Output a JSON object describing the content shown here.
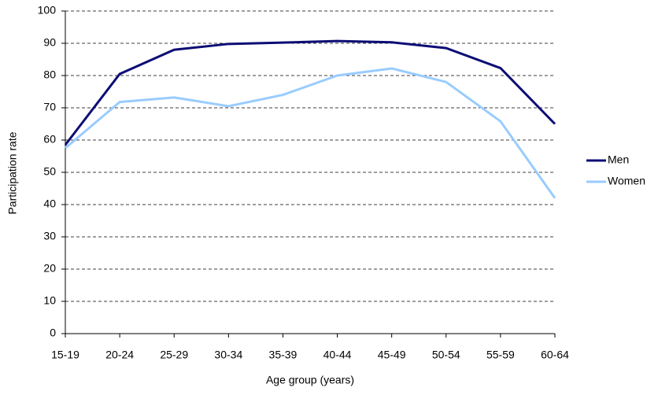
{
  "chart_data": {
    "type": "line",
    "x_label": "Age group (years)",
    "y_label": "Participation rate",
    "categories": [
      "15-19",
      "20-24",
      "25-29",
      "30-34",
      "35-39",
      "40-44",
      "45-49",
      "50-54",
      "55-59",
      "60-64"
    ],
    "series": [
      {
        "name": "Men",
        "color": "#0d0d75",
        "values": [
          58.5,
          80.5,
          88,
          89.8,
          90.2,
          90.7,
          90.3,
          88.5,
          82.3,
          65
        ]
      },
      {
        "name": "Women",
        "color": "#99ccff",
        "values": [
          57.5,
          71.8,
          73.2,
          70.5,
          74,
          80,
          82.2,
          78,
          65.8,
          42
        ]
      }
    ],
    "ylim": [
      0,
      100
    ],
    "yticks": [
      0,
      10,
      20,
      30,
      40,
      50,
      60,
      70,
      80,
      90,
      100
    ],
    "grid": true,
    "legend_position": "right"
  }
}
